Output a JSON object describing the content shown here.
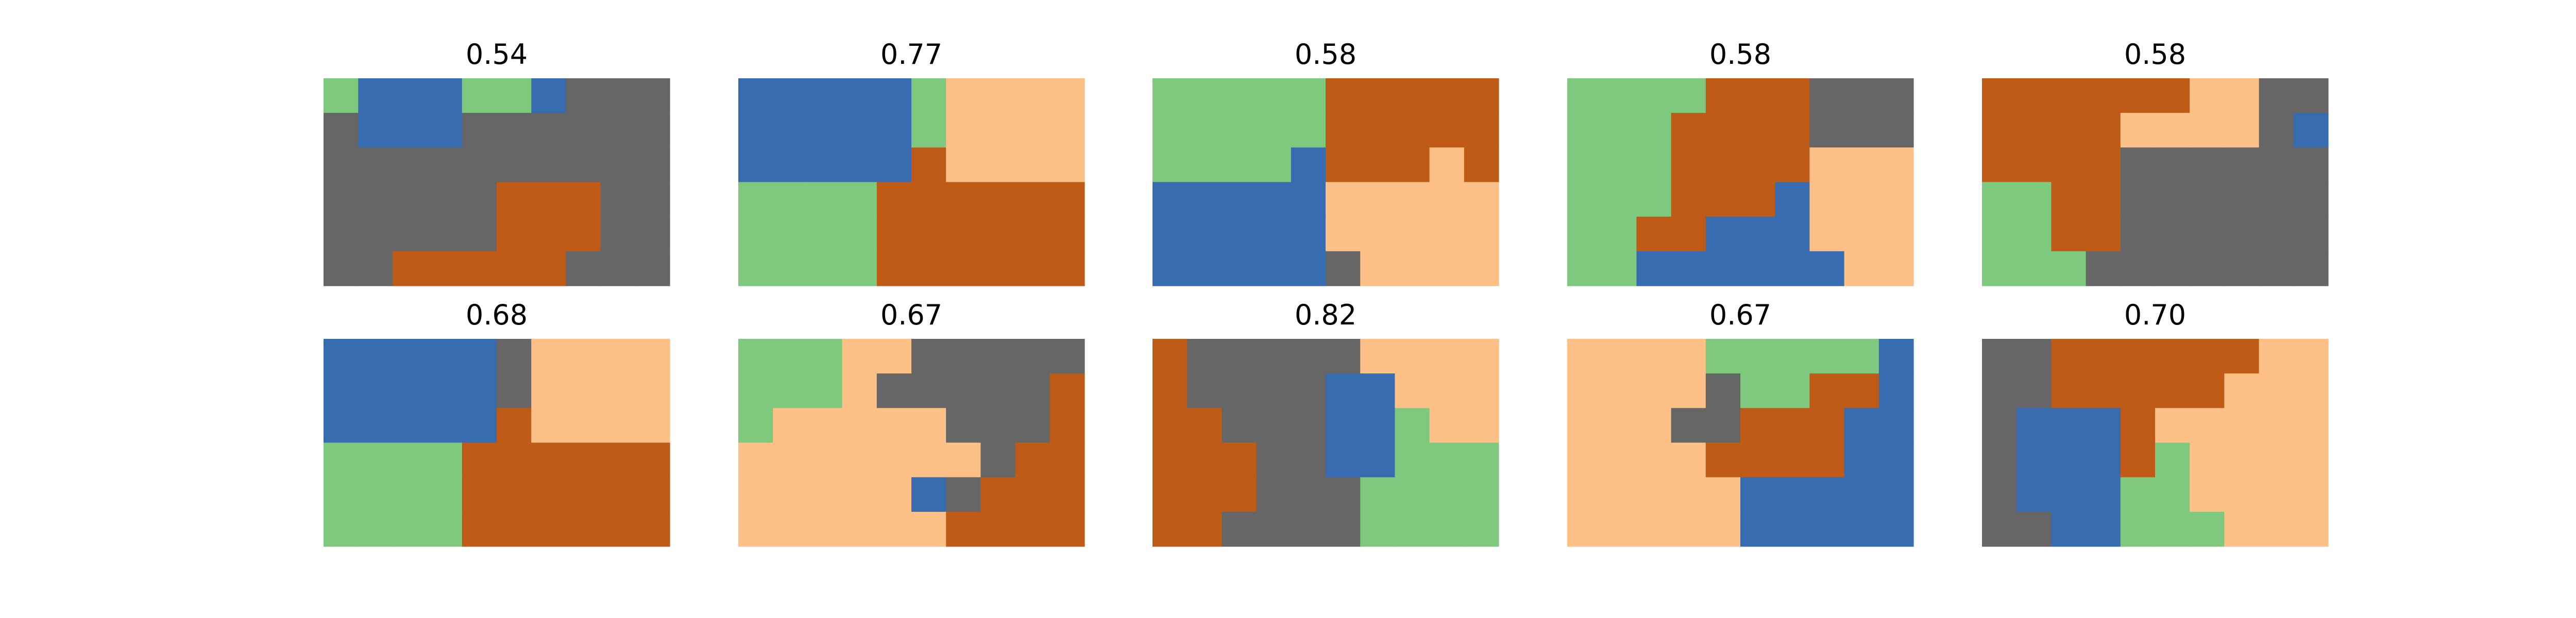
{
  "colors": {
    "green": "#7fc97f",
    "blue": "#386cb0",
    "gray": "#666666",
    "peach": "#fdc086",
    "orange": "#bf5b17"
  },
  "chart_data": {
    "type": "heatmap",
    "grid_size": {
      "rows": 6,
      "cols": 10
    },
    "panels": [
      {
        "title": "0.54",
        "grid": [
          "GBBBGGBAAA",
          "KBBBKEKKKK",
          "KKKKKKHKKK",
          "KKKDEOOOKK",
          "KKKKAOOOAK",
          "KKOOOOOKKK"
        ]
      },
      {
        "title": "0.77",
        "grid": [
          "BBBBBGSSSS",
          "BBBBBGSSSS",
          "BBBBBOSSSS",
          "GGGGOOOOOO",
          "GGGGOOOOOO",
          "GGGGOOOOOO"
        ]
      },
      {
        "title": "0.58",
        "grid": [
          "GGGGGOOOOO",
          "GGGGGOOOOO",
          "GGGGBOOOSO",
          "BBBBBSSSSS",
          "BBBBBSSSSS",
          "BBBBBKSSSS"
        ]
      },
      {
        "title": "0.58",
        "grid": [
          "GGGGOOOKKK",
          "GGGOOOOKKK",
          "GGGOOOOSSS",
          "GGGOOOBSSS",
          "GGOOBBBSSS",
          "GGBBBBBBSS"
        ]
      },
      {
        "title": "0.58",
        "grid": [
          "OOOOOOSSKK",
          "OOOOSSSSKB",
          "OOOOKKKKKK",
          "GGOOKKKKKK",
          "GGOOKKKKKK",
          "GGGKKKKKKK"
        ]
      },
      {
        "title": "0.68",
        "grid": [
          "BBBBBKSSSS",
          "BBBBBKSSSS",
          "BBBBBOSSSS",
          "GGGGOOOOOO",
          "GGGGOOOOOO",
          "GGGGOOOOOO"
        ]
      },
      {
        "title": "0.67",
        "grid": [
          "GGGSSKKKKK",
          "GGGSKKKKKO",
          "GSSSSSKKKO",
          "SSSSSSSKOO",
          "SSSSSBKOOO",
          "SSSSSSOOOO"
        ]
      },
      {
        "title": "0.82",
        "grid": [
          "OKKKKKSSSS",
          "OKKKKBBSSS",
          "OOKKKBBGSS",
          "OOOKKBBGGG",
          "OOOKKKGGGG",
          "OOKKKKGGGG"
        ]
      },
      {
        "title": "0.67",
        "grid": [
          "SSSSGGGGGB",
          "SSSSKGGOOB",
          "SSSKKOOOBB",
          "SSSSOOOOBB",
          "SSSSSBBBBB",
          "SSSSSBBBBB"
        ]
      },
      {
        "title": "0.70",
        "grid": [
          "KKOOOOOOSS",
          "KKOOOOOSSS",
          "KBBBOSSSSS",
          "KBBBOGSSSS",
          "KBBBGGSSSS",
          "KKBBGGGSSS"
        ]
      }
    ]
  }
}
